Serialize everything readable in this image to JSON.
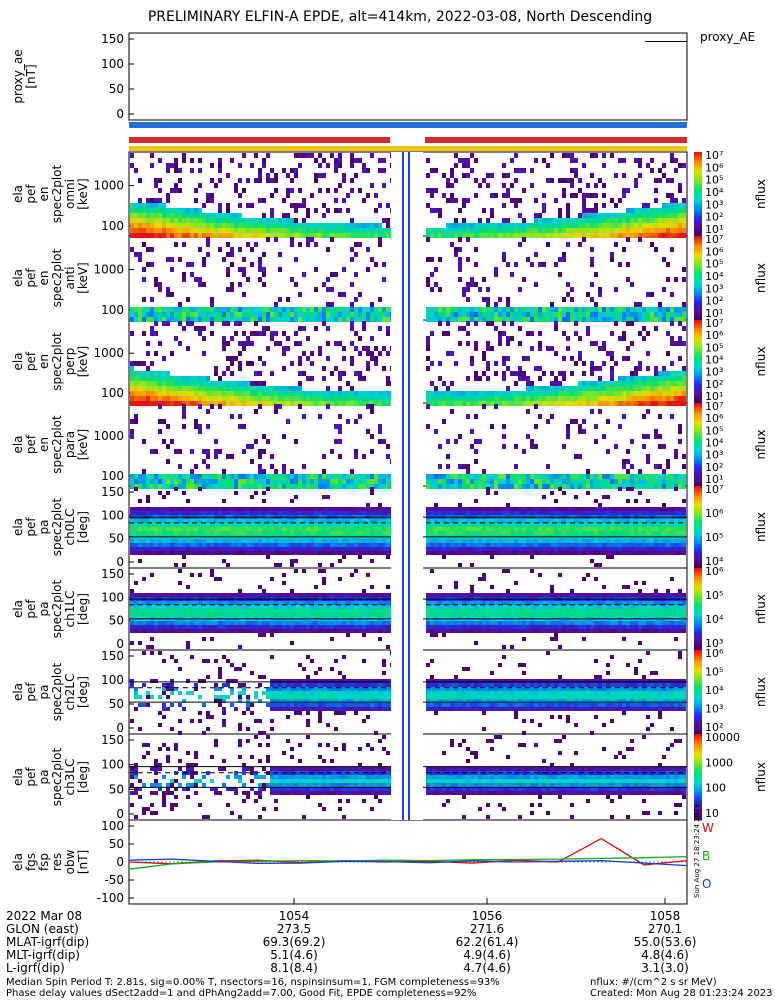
{
  "title": "PRELIMINARY ELFIN-A EPDE, alt=414km, 2022-03-08, North Descending",
  "ae_label": "proxy_AE",
  "colors": {
    "bar_blue": "#1e6fd8",
    "bar_red": "#d42a2a",
    "bar_yellow": "#f0c800",
    "trace_blue": "#1a3cc8",
    "trace_green": "#1ca81c",
    "trace_red": "#d01010"
  },
  "panels": [
    {
      "ylabel": [
        "proxy_ae",
        "[nT]"
      ],
      "yticks": [
        "150",
        "100",
        "50",
        "0"
      ],
      "cb_label": ""
    },
    {
      "ylabel": [
        "ela",
        "pef",
        "en",
        "spec2plot",
        "omni",
        "[keV]"
      ],
      "yticks": [
        "1000",
        "100"
      ],
      "cb_label": "nflux",
      "cb_ticks": [
        "10⁷",
        "10⁶",
        "10⁵",
        "10⁴",
        "10³",
        "10²",
        "10¹"
      ]
    },
    {
      "ylabel": [
        "ela",
        "pef",
        "en",
        "spec2plot",
        "anti",
        "[keV]"
      ],
      "yticks": [
        "1000",
        "100"
      ],
      "cb_label": "nflux",
      "cb_ticks": [
        "10⁷",
        "10⁶",
        "10⁵",
        "10⁴",
        "10³",
        "10²",
        "10¹"
      ]
    },
    {
      "ylabel": [
        "ela",
        "pef",
        "en",
        "spec2plot",
        "perp",
        "[keV]"
      ],
      "yticks": [
        "1000",
        "100"
      ],
      "cb_label": "nflux",
      "cb_ticks": [
        "10⁷",
        "10⁶",
        "10⁵",
        "10⁴",
        "10³",
        "10²",
        "10¹"
      ]
    },
    {
      "ylabel": [
        "ela",
        "pef",
        "en",
        "spec2plot",
        "para",
        "[keV]"
      ],
      "yticks": [
        "1000",
        "100"
      ],
      "cb_label": "nflux",
      "cb_ticks": [
        "10⁷",
        "10⁶",
        "10⁵",
        "10⁴",
        "10³",
        "10²",
        "10¹"
      ]
    },
    {
      "ylabel": [
        "ela",
        "pef",
        "pa",
        "spec2plot",
        "ch0LC",
        "[deg]"
      ],
      "yticks": [
        "150",
        "100",
        "50",
        "0"
      ],
      "cb_label": "nflux",
      "cb_ticks": [
        "10⁷",
        "10⁶",
        "10⁵",
        "10⁴"
      ]
    },
    {
      "ylabel": [
        "ela",
        "pef",
        "pa",
        "spec2plot",
        "ch1LC",
        "[deg]"
      ],
      "yticks": [
        "150",
        "100",
        "50",
        "0"
      ],
      "cb_label": "nflux",
      "cb_ticks": [
        "10⁶",
        "10⁵",
        "10⁴",
        "10³"
      ]
    },
    {
      "ylabel": [
        "ela",
        "pef",
        "pa",
        "spec2plot",
        "ch2LC",
        "[deg]"
      ],
      "yticks": [
        "150",
        "100",
        "50",
        "0"
      ],
      "cb_label": "nflux",
      "cb_ticks": [
        "10⁶",
        "10⁵",
        "10⁴",
        "10³",
        "10²"
      ]
    },
    {
      "ylabel": [
        "ela",
        "pef",
        "pa",
        "spec2plot",
        "ch3LC",
        "[deg]"
      ],
      "yticks": [
        "150",
        "100",
        "50",
        "0"
      ],
      "cb_label": "nflux",
      "cb_ticks": [
        "10000",
        "1000",
        "100",
        "10"
      ]
    },
    {
      "ylabel": [
        "ela",
        "fgs",
        "fsp",
        "res",
        "obw",
        "[nT]"
      ],
      "yticks": [
        "100",
        "50",
        "0",
        "-50",
        "-100"
      ],
      "cb_label": ""
    }
  ],
  "fgs_legend": [
    "W",
    "B",
    "O"
  ],
  "footer": {
    "rows": [
      {
        "label": "2022 Mar 08",
        "values": [
          "1054",
          "1056",
          "1058"
        ]
      },
      {
        "label": "GLON (east)",
        "values": [
          "273.5",
          "271.6",
          "270.1"
        ]
      },
      {
        "label": "MLAT-igrf(dip)",
        "values": [
          "69.3(69.2)",
          "62.2(61.4)",
          "55.0(53.6)"
        ]
      },
      {
        "label": "MLT-igrf(dip)",
        "values": [
          "5.1(4.6)",
          "4.9(4.6)",
          "4.8(4.6)"
        ]
      },
      {
        "label": "L-igrf(dip)",
        "values": [
          "8.1(8.4)",
          "4.7(4.6)",
          "3.1(3.0)"
        ]
      }
    ],
    "note1": "Median Spin Period T: 2.81s, sig=0.00% T, nsectors=16, nspinsinsum=1, FGM completeness=93%",
    "note2": "Phase delay values dSect2add=1 and dPhAng2add=7.00, Good Fit, EPDE completeness=92%",
    "units": "nflux: #/(cm^2 s sr MeV)",
    "created": "Created: Mon Aug 28 01:23:24 2023",
    "side_stamp": "Sun Aug 27 18:23:24 2023"
  },
  "chart_data": {
    "type": "heatmap",
    "title": "PRELIMINARY ELFIN-A EPDE, alt=414km, 2022-03-08, North Descending",
    "x_ticks": [
      "1054",
      "1056",
      "1058"
    ],
    "proxy_ae": {
      "ylim": [
        0,
        150
      ],
      "value_end": 145
    },
    "energy_panels": [
      "omni",
      "anti",
      "perp",
      "para"
    ],
    "energy_ylim_keV": [
      50,
      6000
    ],
    "pitch_panels": [
      "ch0LC",
      "ch1LC",
      "ch2LC",
      "ch3LC"
    ],
    "pitch_ylim_deg": [
      0,
      180
    ],
    "fgs": {
      "ylim": [
        -100,
        100
      ],
      "series": [
        {
          "name": "W",
          "values": [
            0,
            -5,
            3,
            5,
            -2,
            4,
            0,
            2,
            -3,
            5,
            0,
            65,
            -8,
            4
          ]
        },
        {
          "name": "B",
          "values": [
            -20,
            -5,
            0,
            2,
            4,
            3,
            5,
            4,
            6,
            7,
            8,
            10,
            12,
            15
          ]
        },
        {
          "name": "O",
          "values": [
            5,
            8,
            2,
            -4,
            -3,
            2,
            1,
            -2,
            3,
            0,
            2,
            4,
            -3,
            -10
          ]
        }
      ]
    }
  }
}
